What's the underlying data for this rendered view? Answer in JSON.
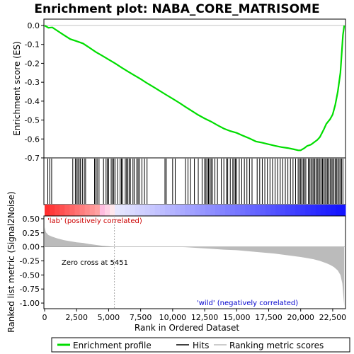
{
  "title": "Enrichment plot: NABA_CORE_MATRISOME",
  "chart_data": {
    "type": "line",
    "title": "Enrichment plot: NABA_CORE_MATRISOME",
    "xlabel": "Rank in Ordered Dataset",
    "xlim": [
      0,
      23500
    ],
    "x_ticks": [
      "0",
      "2,500",
      "5,000",
      "7,500",
      "10,000",
      "12,500",
      "15,000",
      "17,500",
      "20,000",
      "22,500"
    ],
    "es_panel": {
      "ylabel": "Enrichment score (ES)",
      "ylim": [
        -0.7,
        0.0
      ],
      "y_ticks": [
        "0.0",
        "-0.1",
        "-0.2",
        "-0.3",
        "-0.4",
        "-0.5",
        "-0.6",
        "-0.7"
      ],
      "series": {
        "name": "Enrichment profile",
        "color": "#00dd00",
        "x": [
          0,
          300,
          600,
          1000,
          1500,
          2000,
          2500,
          3000,
          3500,
          4000,
          4500,
          5000,
          5500,
          6000,
          6500,
          7000,
          7500,
          8000,
          8500,
          9000,
          9500,
          10000,
          10500,
          11000,
          11500,
          12000,
          12500,
          13000,
          13500,
          14000,
          14500,
          15000,
          15500,
          16000,
          16500,
          17000,
          17500,
          18000,
          18500,
          19000,
          19500,
          19800,
          20000,
          20300,
          20500,
          20800,
          21000,
          21300,
          21500,
          21800,
          22000,
          22300,
          22500,
          22700,
          22900,
          23100,
          23200,
          23300,
          23400
        ],
        "y": [
          0.0,
          -0.012,
          -0.01,
          -0.028,
          -0.05,
          -0.072,
          -0.083,
          -0.095,
          -0.117,
          -0.14,
          -0.16,
          -0.18,
          -0.2,
          -0.222,
          -0.243,
          -0.263,
          -0.283,
          -0.305,
          -0.325,
          -0.346,
          -0.367,
          -0.387,
          -0.408,
          -0.43,
          -0.452,
          -0.473,
          -0.492,
          -0.508,
          -0.527,
          -0.545,
          -0.558,
          -0.568,
          -0.583,
          -0.597,
          -0.613,
          -0.62,
          -0.628,
          -0.636,
          -0.643,
          -0.648,
          -0.655,
          -0.66,
          -0.66,
          -0.648,
          -0.637,
          -0.63,
          -0.62,
          -0.605,
          -0.59,
          -0.55,
          -0.52,
          -0.495,
          -0.47,
          -0.42,
          -0.35,
          -0.25,
          -0.15,
          -0.05,
          0.0
        ]
      }
    },
    "hits": {
      "name": "Hits",
      "positions": [
        250,
        400,
        550,
        2200,
        2400,
        2500,
        2600,
        2700,
        2800,
        2950,
        3100,
        3200,
        3900,
        4000,
        4100,
        4250,
        4600,
        4800,
        4900,
        5000,
        5200,
        5300,
        5400,
        5500,
        5700,
        5900,
        6000,
        6100,
        6300,
        6400,
        6500,
        6600,
        6700,
        6900,
        7000,
        7200,
        7300,
        7400,
        7600,
        7800,
        8000,
        9400,
        9500,
        10000,
        10200,
        11000,
        11200,
        11400,
        11700,
        12000,
        12300,
        12500,
        12600,
        12700,
        12800,
        12900,
        13000,
        13100,
        13300,
        13500,
        13800,
        14000,
        14200,
        14300,
        14500,
        14700,
        14800,
        14900,
        15000,
        15200,
        15400,
        15600,
        15800,
        16000,
        16200,
        16600,
        16800,
        17000,
        17200,
        17400,
        17600,
        17800,
        18000,
        18200,
        18400,
        18600,
        18800,
        19000,
        19200,
        19400,
        19600,
        19800,
        19900,
        20000,
        20100,
        20200,
        20300,
        20400,
        20600,
        20700,
        20800,
        20900,
        21000,
        21100,
        21200,
        21300,
        21400,
        21500,
        21600,
        21700,
        21800,
        21900,
        22000,
        22100,
        22200,
        22300,
        22400,
        22500,
        22600,
        22700,
        22800,
        22900,
        23000,
        23100,
        23200,
        23300
      ]
    },
    "metric_panel": {
      "ylabel": "Ranked list metric (Signal2Noise)",
      "ylim": [
        -1.1,
        0.55
      ],
      "y_ticks": [
        "0.50",
        "0.25",
        "0.00",
        "-0.25",
        "-0.50",
        "-0.75",
        "-1.00"
      ],
      "series": {
        "name": "Ranking metric scores",
        "color": "#bbbbbb",
        "x": [
          0,
          100,
          300,
          600,
          1000,
          1500,
          2000,
          2500,
          3000,
          3500,
          4000,
          4500,
          5000,
          5451,
          6000,
          8000,
          10000,
          11000,
          12000,
          13000,
          14000,
          15000,
          16000,
          17000,
          18000,
          19000,
          20000,
          20500,
          21000,
          21500,
          22000,
          22300,
          22600,
          22900,
          23100,
          23250,
          23400
        ],
        "y": [
          0.35,
          0.26,
          0.21,
          0.18,
          0.15,
          0.12,
          0.1,
          0.08,
          0.07,
          0.05,
          0.035,
          0.02,
          0.01,
          0.0,
          0.0,
          0.0,
          0.0,
          -0.005,
          -0.02,
          -0.035,
          -0.05,
          -0.06,
          -0.08,
          -0.1,
          -0.12,
          -0.15,
          -0.18,
          -0.2,
          -0.22,
          -0.25,
          -0.29,
          -0.32,
          -0.36,
          -0.42,
          -0.5,
          -0.65,
          -1.05
        ]
      },
      "zero_cross_label": "Zero cross at 5451",
      "zero_cross": 5451,
      "pos_label": "'lab' (positively correlated)",
      "neg_label": "'wild' (negatively correlated)"
    },
    "legend": [
      "Enrichment profile",
      "Hits",
      "Ranking metric scores"
    ]
  }
}
